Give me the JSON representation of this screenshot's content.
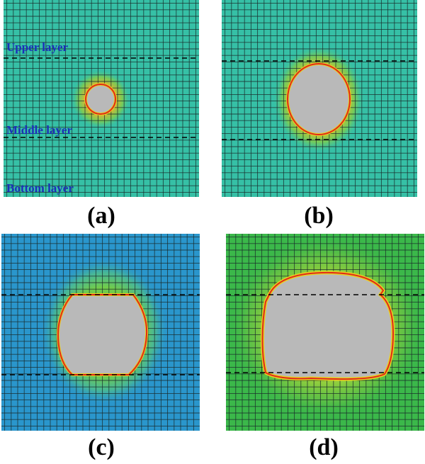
{
  "panels": [
    {
      "caption": "(a)",
      "background": "#36c0a6",
      "glow": "#a7c63a",
      "labels": [
        "Upper layer",
        "Middle layer",
        "Bottom layer"
      ]
    },
    {
      "caption": "(b)",
      "background": "#36c0a6",
      "glow": "#a7c63a"
    },
    {
      "caption": "(c)",
      "background": "#2a96cc",
      "glow": "#6fca4a"
    },
    {
      "caption": "(d)",
      "background": "#3bb84a",
      "glow": "#8fcf3a"
    }
  ],
  "colors": {
    "grid_line": "#1a2a2a",
    "boundary": "#e02a1a",
    "boundary_halo": "#f0d020",
    "damaged_region": "#b9b9b9",
    "interface_line": "#000000",
    "label_text": "#1c2fb8"
  }
}
